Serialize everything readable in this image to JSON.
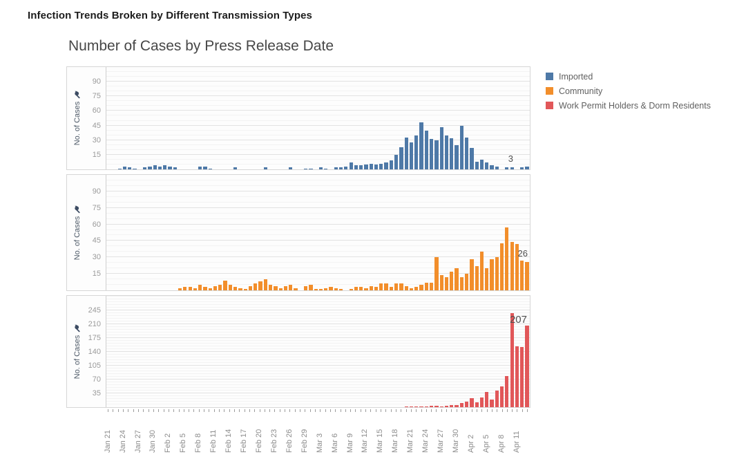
{
  "header": {
    "title": "Infection Trends Broken by Different Transmission Types"
  },
  "legend": {
    "items": [
      {
        "label": "Imported",
        "color": "#4e79a7"
      },
      {
        "label": "Community",
        "color": "#f28e2b"
      },
      {
        "label": "Work Permit Holders & Dorm Residents",
        "color": "#e15759"
      }
    ]
  },
  "chart_data": {
    "type": "bar",
    "title": "Number of Cases by Press Release Date",
    "xlabel": "",
    "y_axis_label": "No. of Cases",
    "pin_icon": "pushpin-icon",
    "grid": "on",
    "legend_position": "top-right",
    "label_interval": 3,
    "x": [
      "Jan 21",
      "Jan 22",
      "Jan 23",
      "Jan 24",
      "Jan 25",
      "Jan 26",
      "Jan 27",
      "Jan 28",
      "Jan 29",
      "Jan 30",
      "Jan 31",
      "Feb 1",
      "Feb 2",
      "Feb 3",
      "Feb 4",
      "Feb 5",
      "Feb 6",
      "Feb 7",
      "Feb 8",
      "Feb 9",
      "Feb 10",
      "Feb 11",
      "Feb 12",
      "Feb 13",
      "Feb 14",
      "Feb 15",
      "Feb 16",
      "Feb 17",
      "Feb 18",
      "Feb 19",
      "Feb 20",
      "Feb 21",
      "Feb 22",
      "Feb 23",
      "Feb 24",
      "Feb 25",
      "Feb 26",
      "Feb 27",
      "Feb 28",
      "Feb 29",
      "Mar 1",
      "Mar 2",
      "Mar 3",
      "Mar 4",
      "Mar 5",
      "Mar 6",
      "Mar 7",
      "Mar 8",
      "Mar 9",
      "Mar 10",
      "Mar 11",
      "Mar 12",
      "Mar 13",
      "Mar 14",
      "Mar 15",
      "Mar 16",
      "Mar 17",
      "Mar 18",
      "Mar 19",
      "Mar 20",
      "Mar 21",
      "Mar 22",
      "Mar 23",
      "Mar 24",
      "Mar 25",
      "Mar 26",
      "Mar 27",
      "Mar 28",
      "Mar 29",
      "Mar 30",
      "Mar 31",
      "Apr 1",
      "Apr 2",
      "Apr 3",
      "Apr 4",
      "Apr 5",
      "Apr 6",
      "Apr 7",
      "Apr 8",
      "Apr 9",
      "Apr 10",
      "Apr 11",
      "Apr 12",
      "Apr 13"
    ],
    "panels": [
      {
        "name": "Imported",
        "color": "#4e79a7",
        "ylim": [
          0,
          105
        ],
        "yticks": [
          15,
          30,
          45,
          60,
          75,
          90
        ],
        "minor_step": 5,
        "end_label": "3",
        "values": [
          0,
          0,
          1,
          3,
          2,
          1,
          0,
          2,
          3,
          4,
          3,
          4,
          3,
          2,
          0,
          0,
          0,
          0,
          3,
          3,
          1,
          0,
          0,
          0,
          0,
          2,
          0,
          0,
          0,
          0,
          0,
          2,
          0,
          0,
          0,
          0,
          2,
          0,
          0,
          1,
          1,
          0,
          2,
          1,
          0,
          2,
          2,
          3,
          7,
          4,
          4,
          5,
          6,
          5,
          6,
          7,
          9,
          15,
          23,
          33,
          28,
          35,
          48,
          40,
          31,
          30,
          43,
          35,
          32,
          25,
          45,
          33,
          22,
          8,
          10,
          7,
          4,
          3,
          0,
          2,
          2,
          0,
          2,
          3
        ]
      },
      {
        "name": "Community",
        "color": "#f28e2b",
        "ylim": [
          0,
          105
        ],
        "yticks": [
          15,
          30,
          45,
          60,
          75,
          90
        ],
        "minor_step": 5,
        "end_label": "26",
        "values": [
          0,
          0,
          0,
          0,
          0,
          0,
          0,
          0,
          0,
          0,
          0,
          0,
          0,
          0,
          2,
          3,
          3,
          2,
          5,
          3,
          2,
          4,
          5,
          9,
          5,
          3,
          2,
          1,
          4,
          6,
          8,
          10,
          5,
          4,
          2,
          4,
          5,
          2,
          0,
          4,
          5,
          1,
          1,
          2,
          3,
          2,
          1,
          0,
          1,
          3,
          3,
          2,
          4,
          3,
          6,
          6,
          3,
          6,
          6,
          4,
          2,
          3,
          5,
          7,
          7,
          30,
          14,
          12,
          17,
          20,
          12,
          15,
          28,
          22,
          35,
          20,
          28,
          30,
          43,
          57,
          44,
          42,
          27,
          26
        ]
      },
      {
        "name": "Work Permit Holders & Dorm Residents",
        "color": "#e15759",
        "ylim": [
          0,
          282
        ],
        "yticks": [
          35,
          70,
          105,
          140,
          175,
          210,
          245
        ],
        "minor_step": 7,
        "end_label": "207",
        "values": [
          0,
          0,
          0,
          0,
          0,
          0,
          0,
          0,
          0,
          0,
          0,
          0,
          0,
          0,
          0,
          0,
          0,
          0,
          0,
          0,
          0,
          0,
          0,
          0,
          0,
          0,
          0,
          0,
          0,
          0,
          0,
          0,
          0,
          0,
          0,
          0,
          0,
          0,
          0,
          0,
          0,
          0,
          0,
          0,
          0,
          0,
          0,
          0,
          0,
          0,
          0,
          0,
          0,
          0,
          0,
          0,
          0,
          0,
          0,
          1,
          1,
          1,
          2,
          2,
          3,
          3,
          2,
          4,
          5,
          6,
          10,
          14,
          22,
          12,
          25,
          38,
          20,
          42,
          52,
          78,
          238,
          155,
          152,
          207
        ]
      }
    ]
  }
}
